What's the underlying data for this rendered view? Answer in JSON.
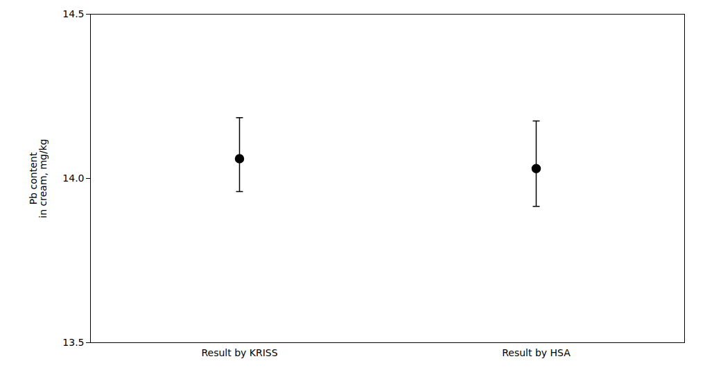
{
  "chart_data": {
    "type": "errorbar",
    "categories": [
      "Result by KRISS",
      "Result by HSA"
    ],
    "values": [
      14.06,
      14.03
    ],
    "errors_upper": [
      0.125,
      0.145
    ],
    "errors_lower": [
      0.1,
      0.115
    ],
    "ylim": [
      13.5,
      14.5
    ],
    "yticks": [
      13.5,
      {
        "value": 14.0,
        "label": "14.0"
      },
      14.5
    ],
    "ylabel": "Pb content\nin cream, mg/kg",
    "color": "#000000",
    "marker": "circle",
    "grid": false
  }
}
